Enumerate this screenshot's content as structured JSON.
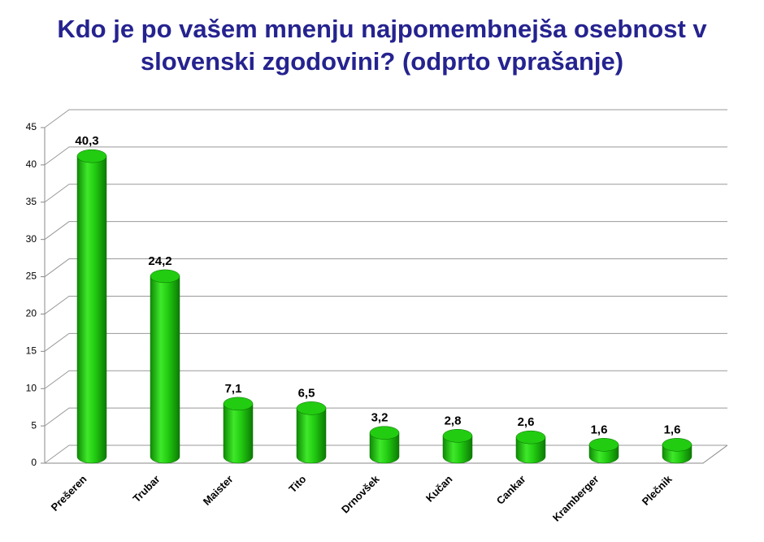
{
  "chart_data": {
    "type": "bar",
    "title": "Kdo je po vašem mnenju najpomembnejša osebnost v slovenski zgodovini? (odprto vprašanje)",
    "categories": [
      "Prešeren",
      "Trubar",
      "Maister",
      "Tito",
      "Drnovšek",
      "Kučan",
      "Cankar",
      "Kramberger",
      "Plečnik"
    ],
    "values": [
      40.3,
      24.2,
      7.1,
      6.5,
      3.2,
      2.8,
      2.6,
      1.6,
      1.6
    ],
    "value_labels": [
      "40,3",
      "24,2",
      "7,1",
      "6,5",
      "3,2",
      "2,8",
      "2,6",
      "1,6",
      "1,6"
    ],
    "color": "#22cc11",
    "ylim": [
      0,
      45
    ],
    "yticks": [
      0,
      5,
      10,
      15,
      20,
      25,
      30,
      35,
      40,
      45
    ],
    "grid": true
  }
}
